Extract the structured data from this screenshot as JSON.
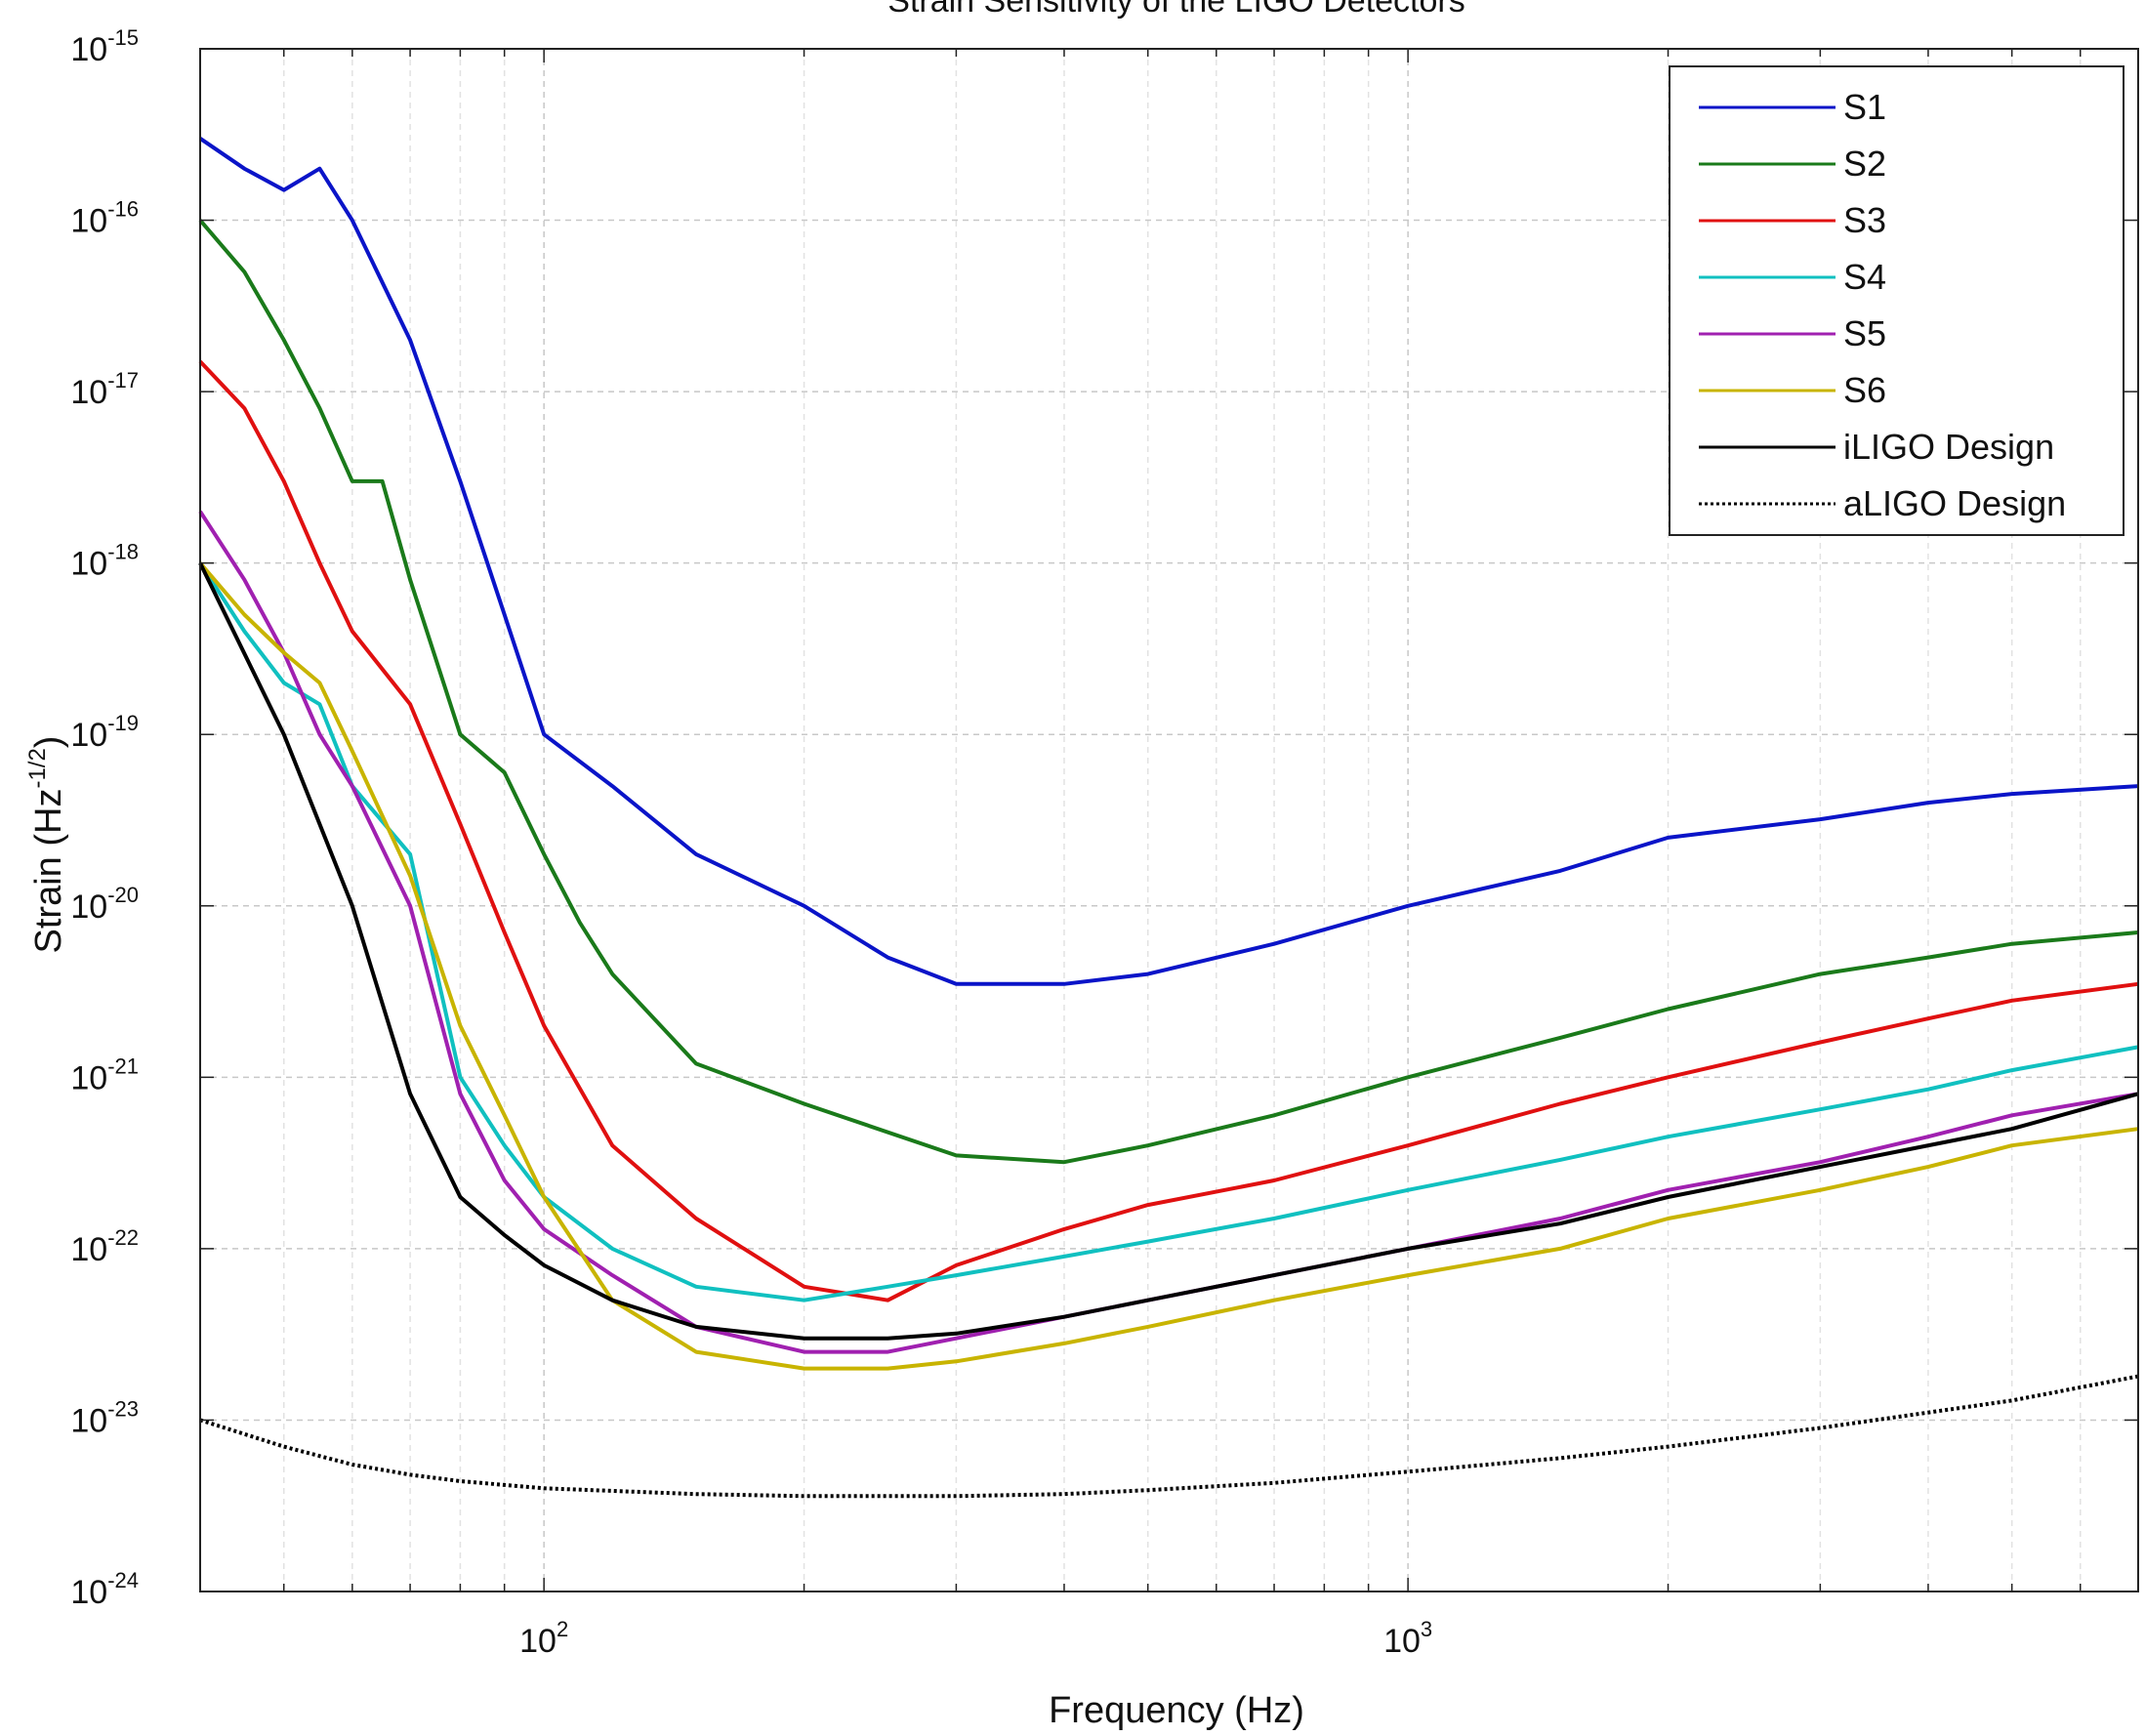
{
  "chart_data": {
    "type": "line",
    "title": "Strain Sensitivity of the LIGO Detectors",
    "xlabel": "Frequency (Hz)",
    "ylabel_base": "Strain (Hz",
    "ylabel_exp": "-1/2",
    "ylabel_close": ")",
    "x_scale": "log",
    "y_scale": "log",
    "xlim": [
      40,
      7000
    ],
    "ylim": [
      1e-24,
      1e-15
    ],
    "x_ticks": [
      {
        "value": 100,
        "base": "10",
        "exp": "2"
      },
      {
        "value": 1000,
        "base": "10",
        "exp": "3"
      }
    ],
    "y_ticks": [
      {
        "value": 1e-15,
        "base": "10",
        "exp": "-15"
      },
      {
        "value": 1e-16,
        "base": "10",
        "exp": "-16"
      },
      {
        "value": 1e-17,
        "base": "10",
        "exp": "-17"
      },
      {
        "value": 1e-18,
        "base": "10",
        "exp": "-18"
      },
      {
        "value": 1e-19,
        "base": "10",
        "exp": "-19"
      },
      {
        "value": 1e-20,
        "base": "10",
        "exp": "-20"
      },
      {
        "value": 1e-21,
        "base": "10",
        "exp": "-21"
      },
      {
        "value": 1e-22,
        "base": "10",
        "exp": "-22"
      },
      {
        "value": 1e-23,
        "base": "10",
        "exp": "-23"
      },
      {
        "value": 1e-24,
        "base": "10",
        "exp": "-24"
      }
    ],
    "grid": true,
    "legend_position": "top-right",
    "series": [
      {
        "name": "S1",
        "color": "#0a14c8",
        "style": "solid",
        "x": [
          40,
          45,
          50,
          55,
          60,
          70,
          80,
          90,
          100,
          120,
          150,
          200,
          250,
          300,
          400,
          500,
          700,
          1000,
          1500,
          2000,
          3000,
          4000,
          5000,
          7000
        ],
        "y": [
          3e-16,
          2e-16,
          1.5e-16,
          2e-16,
          1e-16,
          2e-17,
          3e-18,
          5e-19,
          1e-19,
          5e-20,
          2e-20,
          1e-20,
          5e-21,
          3.5e-21,
          3.5e-21,
          4e-21,
          6e-21,
          1e-20,
          1.6e-20,
          2.5e-20,
          3.2e-20,
          4e-20,
          4.5e-20,
          5e-20
        ]
      },
      {
        "name": "S2",
        "color": "#1a7a1a",
        "style": "solid",
        "x": [
          40,
          45,
          50,
          55,
          60,
          65,
          70,
          80,
          90,
          100,
          110,
          120,
          150,
          200,
          300,
          400,
          500,
          700,
          1000,
          1500,
          2000,
          3000,
          4000,
          5000,
          7000
        ],
        "y": [
          1e-16,
          5e-17,
          2e-17,
          8e-18,
          3e-18,
          3e-18,
          8e-19,
          1e-19,
          6e-20,
          2e-20,
          8e-21,
          4e-21,
          1.2e-21,
          7e-22,
          3.5e-22,
          3.2e-22,
          4e-22,
          6e-22,
          1e-21,
          1.7e-21,
          2.5e-21,
          4e-21,
          5e-21,
          6e-21,
          7e-21
        ]
      },
      {
        "name": "S3",
        "color": "#e01010",
        "style": "solid",
        "x": [
          40,
          45,
          50,
          55,
          60,
          70,
          80,
          90,
          100,
          120,
          150,
          200,
          250,
          300,
          400,
          500,
          700,
          1000,
          1500,
          2000,
          3000,
          4000,
          5000,
          7000
        ],
        "y": [
          1.5e-17,
          8e-18,
          3e-18,
          1e-18,
          4e-19,
          1.5e-19,
          3e-20,
          7e-21,
          2e-21,
          4e-22,
          1.5e-22,
          6e-23,
          5e-23,
          8e-23,
          1.3e-22,
          1.8e-22,
          2.5e-22,
          4e-22,
          7e-22,
          1e-21,
          1.6e-21,
          2.2e-21,
          2.8e-21,
          3.5e-21
        ]
      },
      {
        "name": "S4",
        "color": "#10c0c0",
        "style": "solid",
        "x": [
          40,
          45,
          50,
          55,
          60,
          70,
          80,
          90,
          100,
          120,
          150,
          200,
          250,
          300,
          400,
          500,
          700,
          1000,
          1500,
          2000,
          3000,
          4000,
          5000,
          7000
        ],
        "y": [
          1e-18,
          4e-19,
          2e-19,
          1.5e-19,
          5e-20,
          2e-20,
          1e-21,
          4e-22,
          2e-22,
          1e-22,
          6e-23,
          5e-23,
          6e-23,
          7e-23,
          9e-23,
          1.1e-22,
          1.5e-22,
          2.2e-22,
          3.3e-22,
          4.5e-22,
          6.5e-22,
          8.5e-22,
          1.1e-21,
          1.5e-21
        ]
      },
      {
        "name": "S5",
        "color": "#a020b0",
        "style": "solid",
        "x": [
          40,
          45,
          50,
          55,
          60,
          70,
          80,
          90,
          100,
          120,
          150,
          200,
          250,
          300,
          400,
          500,
          700,
          1000,
          1500,
          2000,
          3000,
          4000,
          5000,
          7000
        ],
        "y": [
          2e-18,
          8e-19,
          3e-19,
          1e-19,
          5e-20,
          1e-20,
          8e-22,
          2.5e-22,
          1.3e-22,
          7e-23,
          3.5e-23,
          2.5e-23,
          2.5e-23,
          3e-23,
          4e-23,
          5e-23,
          7e-23,
          1e-22,
          1.5e-22,
          2.2e-22,
          3.2e-22,
          4.5e-22,
          6e-22,
          8e-22
        ]
      },
      {
        "name": "S6",
        "color": "#c8b400",
        "style": "solid",
        "x": [
          40,
          45,
          50,
          55,
          60,
          70,
          80,
          90,
          100,
          120,
          150,
          200,
          250,
          300,
          400,
          500,
          700,
          1000,
          1500,
          2000,
          3000,
          4000,
          5000,
          7000
        ],
        "y": [
          1e-18,
          5e-19,
          3e-19,
          2e-19,
          8e-20,
          1.5e-20,
          2e-21,
          6e-22,
          2e-22,
          5e-23,
          2.5e-23,
          2e-23,
          2e-23,
          2.2e-23,
          2.8e-23,
          3.5e-23,
          5e-23,
          7e-23,
          1e-22,
          1.5e-22,
          2.2e-22,
          3e-22,
          4e-22,
          5e-22
        ]
      },
      {
        "name": "iLIGO Design",
        "color": "#000000",
        "style": "solid-thick",
        "x": [
          40,
          50,
          60,
          70,
          80,
          90,
          100,
          120,
          150,
          200,
          250,
          300,
          400,
          500,
          700,
          1000,
          1500,
          2000,
          3000,
          5000,
          7000
        ],
        "y": [
          1e-18,
          1e-19,
          1e-20,
          8e-22,
          2e-22,
          1.2e-22,
          8e-23,
          5e-23,
          3.5e-23,
          3e-23,
          3e-23,
          3.2e-23,
          4e-23,
          5e-23,
          7e-23,
          1e-22,
          1.4e-22,
          2e-22,
          3e-22,
          5e-22,
          8e-22
        ]
      },
      {
        "name": "aLIGO Design",
        "color": "#000000",
        "style": "dotted",
        "x": [
          40,
          50,
          60,
          70,
          80,
          100,
          150,
          200,
          300,
          400,
          500,
          700,
          1000,
          1500,
          2000,
          3000,
          5000,
          7000
        ],
        "y": [
          1e-23,
          7e-24,
          5.5e-24,
          4.8e-24,
          4.4e-24,
          4e-24,
          3.7e-24,
          3.6e-24,
          3.6e-24,
          3.7e-24,
          3.9e-24,
          4.3e-24,
          5e-24,
          6e-24,
          7e-24,
          9e-24,
          1.3e-23,
          1.8e-23
        ]
      }
    ]
  }
}
